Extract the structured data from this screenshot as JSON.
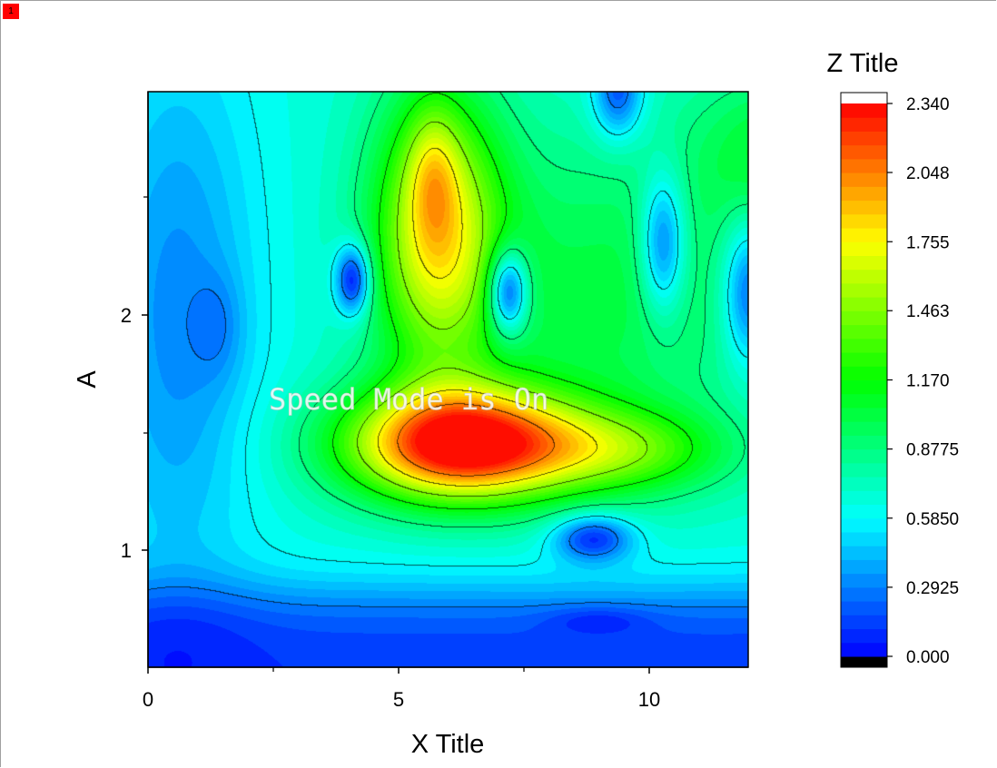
{
  "page_badge": "1",
  "watermark": "Speed Mode is On",
  "chart_data": {
    "type": "heatmap",
    "subtype": "filled-contour",
    "xlabel": "X Title",
    "ylabel": "A",
    "zlabel": "Z Title",
    "xlim": [
      0,
      12
    ],
    "ylim": [
      0.5,
      2.95
    ],
    "zlim": [
      0,
      2.34
    ],
    "x_ticks": [
      "0",
      "5",
      "10"
    ],
    "y_ticks": [
      "1",
      "2"
    ],
    "colorbar_ticks": [
      "2.340",
      "2.048",
      "1.755",
      "1.463",
      "1.170",
      "0.8775",
      "0.5850",
      "0.2925",
      "0.000"
    ],
    "colormap": [
      "#000000",
      "#0000ff",
      "#00ffff",
      "#00ff00",
      "#ffff00",
      "#ff0000",
      "#ffffff"
    ],
    "contour_lines": true,
    "features": [
      {
        "kind": "peak",
        "x": 6.0,
        "y": 1.45,
        "z": 2.3
      },
      {
        "kind": "peak",
        "x": 5.7,
        "y": 2.6,
        "z": 1.8
      },
      {
        "kind": "dip",
        "x": 4.1,
        "y": 2.15,
        "z": 0.3
      },
      {
        "kind": "dip",
        "x": 7.2,
        "y": 2.1,
        "z": 0.3
      },
      {
        "kind": "dip",
        "x": 8.9,
        "y": 1.05,
        "z": 0.2
      },
      {
        "kind": "dip",
        "x": 1.4,
        "y": 1.95,
        "z": 0.25
      },
      {
        "kind": "dip",
        "x": 10.3,
        "y": 2.3,
        "z": 0.3
      },
      {
        "kind": "dip",
        "x": 12.0,
        "y": 2.1,
        "z": 0.3
      },
      {
        "kind": "dip",
        "x": 9.4,
        "y": 2.9,
        "z": 0.25
      }
    ]
  }
}
